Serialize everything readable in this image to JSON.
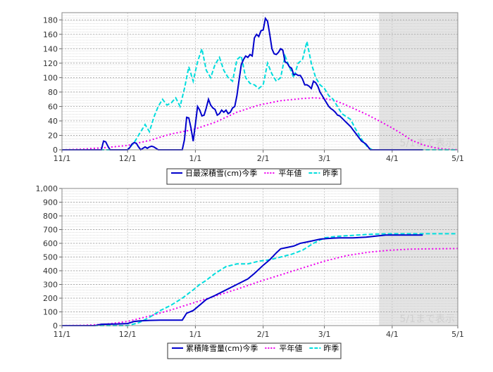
{
  "chart_data": [
    {
      "type": "line",
      "x_labels": [
        "11/1",
        "12/1",
        "1/1",
        "2/1",
        "3/1",
        "4/1",
        "5/1"
      ],
      "y_ticks": [
        "0",
        "20",
        "40",
        "60",
        "80",
        "100",
        "120",
        "140",
        "160",
        "180"
      ],
      "ylim": [
        0,
        190
      ],
      "grid": true,
      "shaded_note": "5/1まで表示",
      "shaded_from": "3/25",
      "legend": [
        {
          "name": "日最深積雪(cm)今季",
          "color": "#0000cc",
          "style": "solid"
        },
        {
          "name": "平年値",
          "color": "#ee00ee",
          "style": "dotted"
        },
        {
          "name": "昨季",
          "color": "#00dddd",
          "style": "dashed"
        }
      ],
      "series": [
        {
          "name": "日最深積雪(cm)今季",
          "color": "#0000cc",
          "style": "solid",
          "x": [
            0,
            18,
            19,
            20,
            21,
            22,
            23,
            30,
            31,
            32,
            33,
            34,
            35,
            36,
            37,
            38,
            39,
            40,
            41,
            42,
            43,
            44,
            45,
            46,
            47,
            55,
            56,
            57,
            58,
            59,
            60,
            61,
            62,
            63,
            64,
            65,
            66,
            67,
            68,
            69,
            70,
            71,
            72,
            73,
            74,
            75,
            76,
            77,
            78,
            79,
            80,
            81,
            82,
            83,
            84,
            85,
            86,
            87,
            88,
            89,
            90,
            91,
            92,
            93,
            94,
            95,
            96,
            97,
            98,
            99,
            100,
            101,
            102,
            103,
            104,
            105,
            106,
            107,
            108,
            109,
            110,
            111,
            112,
            113,
            114,
            115,
            116,
            117,
            118,
            119,
            120,
            121,
            122,
            123,
            124,
            125,
            126,
            127,
            128,
            129,
            130,
            131,
            132,
            133,
            134,
            135,
            136,
            137,
            138,
            139,
            140,
            141,
            142,
            143,
            144,
            145,
            146,
            147,
            148,
            149,
            150,
            151,
            152,
            153,
            154,
            155,
            156,
            157,
            158,
            159,
            160,
            165
          ],
          "y": [
            0,
            0,
            12,
            11,
            5,
            0,
            0,
            0,
            3,
            8,
            10,
            9,
            4,
            0,
            2,
            4,
            2,
            4,
            5,
            4,
            2,
            0,
            0,
            0,
            0,
            0,
            14,
            45,
            44,
            30,
            12,
            35,
            60,
            55,
            47,
            48,
            58,
            70,
            62,
            58,
            56,
            48,
            50,
            55,
            52,
            55,
            50,
            52,
            58,
            60,
            75,
            97,
            118,
            125,
            130,
            128,
            132,
            130,
            155,
            160,
            157,
            165,
            166,
            182,
            178,
            160,
            140,
            133,
            132,
            135,
            140,
            138,
            122,
            120,
            115,
            113,
            104,
            105,
            103,
            103,
            98,
            90,
            90,
            88,
            85,
            95,
            93,
            88,
            80,
            75,
            70,
            65,
            60,
            57,
            55,
            52,
            48,
            47,
            44,
            41,
            38,
            35,
            32,
            28,
            24,
            20,
            16,
            12,
            10,
            8,
            4,
            0,
            0,
            0,
            0,
            0,
            0,
            0,
            0,
            0,
            0,
            0,
            0,
            0,
            0,
            0,
            0,
            0,
            0,
            0,
            0,
            0
          ]
        },
        {
          "name": "平年値",
          "color": "#ee00ee",
          "style": "dotted",
          "x": [
            0,
            10,
            20,
            30,
            40,
            50,
            60,
            70,
            80,
            90,
            100,
            110,
            115,
            120,
            125,
            130,
            135,
            140,
            145,
            150,
            155,
            160,
            165,
            170,
            175,
            181
          ],
          "y": [
            0,
            1,
            3,
            6,
            13,
            22,
            28,
            38,
            52,
            62,
            68,
            71,
            72,
            71,
            68,
            62,
            55,
            48,
            40,
            32,
            23,
            13,
            7,
            3,
            1,
            0
          ]
        },
        {
          "name": "昨季",
          "color": "#00dddd",
          "style": "dashed",
          "x": [
            0,
            30,
            33,
            36,
            38,
            40,
            42,
            44,
            46,
            48,
            50,
            52,
            54,
            56,
            58,
            60,
            62,
            64,
            66,
            68,
            70,
            72,
            74,
            76,
            78,
            80,
            82,
            84,
            86,
            88,
            90,
            92,
            94,
            96,
            98,
            100,
            102,
            104,
            106,
            108,
            110,
            112,
            114,
            116,
            118,
            120,
            122,
            124,
            126,
            128,
            130,
            132,
            134,
            136,
            138,
            140,
            142,
            144,
            146,
            150,
            155,
            181
          ],
          "y": [
            0,
            0,
            10,
            25,
            35,
            25,
            45,
            60,
            70,
            62,
            65,
            72,
            60,
            85,
            115,
            95,
            122,
            140,
            110,
            100,
            118,
            128,
            110,
            100,
            95,
            125,
            130,
            100,
            92,
            90,
            85,
            90,
            120,
            105,
            95,
            100,
            130,
            115,
            100,
            120,
            125,
            150,
            120,
            100,
            90,
            85,
            75,
            70,
            60,
            50,
            46,
            42,
            30,
            20,
            10,
            3,
            0,
            0,
            0,
            0,
            0,
            0
          ]
        }
      ]
    },
    {
      "type": "line",
      "x_labels": [
        "11/1",
        "12/1",
        "1/1",
        "2/1",
        "3/1",
        "4/1",
        "5/1"
      ],
      "y_ticks": [
        "0",
        "100",
        "200",
        "300",
        "400",
        "500",
        "600",
        "700",
        "800",
        "900",
        "1,000"
      ],
      "ylim": [
        0,
        1000
      ],
      "grid": true,
      "shaded_note": "5/1まで表示",
      "shaded_from": "3/25",
      "legend": [
        {
          "name": "累積降雪量(cm)今季",
          "color": "#0000cc",
          "style": "solid"
        },
        {
          "name": "平年値",
          "color": "#ee00ee",
          "style": "dotted"
        },
        {
          "name": "昨季",
          "color": "#00dddd",
          "style": "dashed"
        }
      ],
      "series": [
        {
          "name": "累積降雪量(cm)今季",
          "color": "#0000cc",
          "style": "solid",
          "x": [
            0,
            15,
            18,
            25,
            30,
            33,
            36,
            40,
            45,
            50,
            55,
            57,
            60,
            63,
            66,
            70,
            75,
            80,
            85,
            88,
            90,
            92,
            95,
            98,
            100,
            103,
            106,
            109,
            112,
            115,
            118,
            121,
            124,
            127,
            130,
            133,
            136,
            139,
            142,
            145,
            148,
            150,
            155,
            160,
            165
          ],
          "y": [
            0,
            0,
            10,
            12,
            15,
            30,
            35,
            38,
            40,
            40,
            40,
            90,
            110,
            150,
            190,
            220,
            260,
            300,
            340,
            380,
            410,
            440,
            480,
            530,
            560,
            570,
            580,
            600,
            610,
            620,
            630,
            635,
            638,
            640,
            640,
            640,
            642,
            645,
            650,
            655,
            660,
            660,
            660,
            660,
            660
          ]
        },
        {
          "name": "平年値",
          "color": "#ee00ee",
          "style": "dotted",
          "x": [
            0,
            10,
            20,
            30,
            40,
            50,
            60,
            70,
            80,
            90,
            100,
            110,
            120,
            130,
            140,
            150,
            160,
            170,
            181
          ],
          "y": [
            0,
            2,
            10,
            30,
            70,
            115,
            165,
            215,
            265,
            320,
            370,
            420,
            470,
            510,
            535,
            550,
            558,
            560,
            562
          ]
        },
        {
          "name": "昨季",
          "color": "#00dddd",
          "style": "dashed",
          "x": [
            0,
            30,
            35,
            40,
            45,
            50,
            55,
            60,
            63,
            66,
            70,
            75,
            80,
            85,
            90,
            95,
            100,
            105,
            110,
            115,
            120,
            125,
            130,
            135,
            140,
            145,
            150,
            155,
            160,
            170,
            181
          ],
          "y": [
            0,
            0,
            20,
            60,
            110,
            150,
            200,
            260,
            300,
            330,
            380,
            430,
            450,
            450,
            470,
            480,
            500,
            520,
            550,
            600,
            640,
            650,
            655,
            660,
            665,
            668,
            670,
            670,
            670,
            670,
            670
          ]
        }
      ]
    }
  ]
}
